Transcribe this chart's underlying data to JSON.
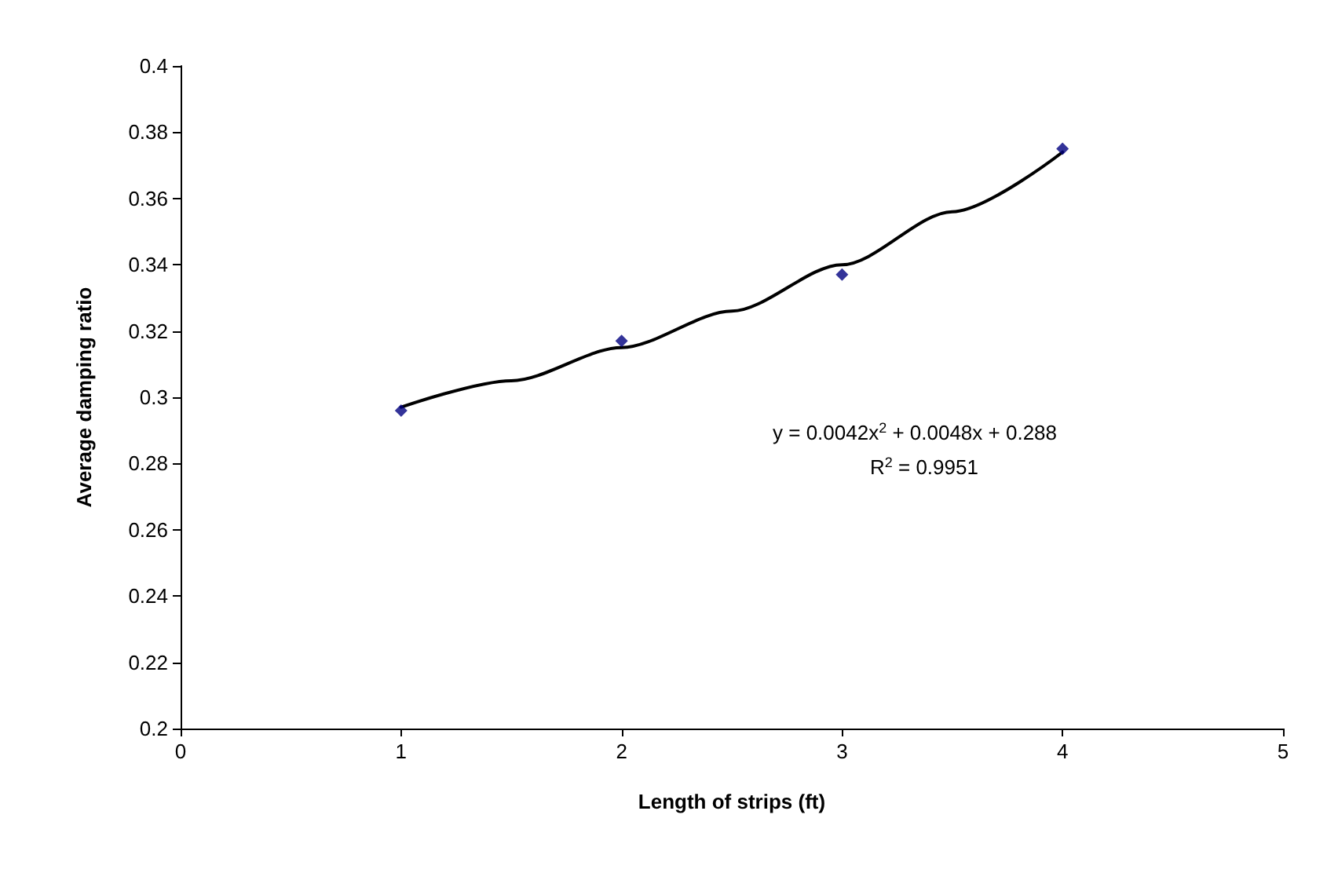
{
  "chart_data": {
    "type": "scatter",
    "xlabel": "Length of strips (ft)",
    "ylabel": "Average damping ratio",
    "x": [
      1,
      2,
      3,
      4
    ],
    "series": [
      {
        "color": "#000080",
        "marker": "diamond",
        "values": [
          0.296,
          0.317,
          0.337,
          0.375
        ]
      },
      {
        "type": "line",
        "color": "#000000",
        "marker": "none",
        "line_style": "solid",
        "x": [
          1,
          1.5,
          2,
          2.5,
          3,
          3.5,
          4
        ],
        "values": [
          0.297,
          0.305,
          0.315,
          0.326,
          0.34,
          0.356,
          0.374
        ]
      }
    ],
    "xlim": [
      0,
      5
    ],
    "xticks": [
      0,
      1,
      2,
      3,
      4,
      5
    ],
    "ylim": [
      0.2,
      0.4
    ],
    "yticks": [
      0.2,
      0.22,
      0.24,
      0.26,
      0.28,
      0.3,
      0.32,
      0.34,
      0.36,
      0.38,
      0.4
    ],
    "grid": false,
    "legend": false,
    "annotations": [
      "y = 0.0042x$^{2}$ + 0.0048x + 0.288",
      "R$^{2}$ = 0.9951"
    ]
  }
}
